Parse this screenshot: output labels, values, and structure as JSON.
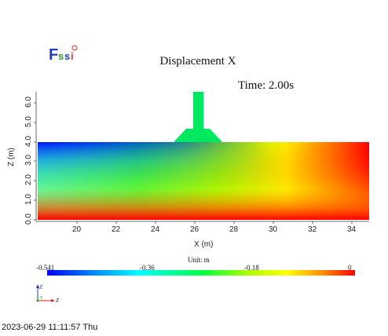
{
  "logo": {
    "text": "Fssi"
  },
  "plot": {
    "title": "Displacement X",
    "time_label": "Time: 2.00s",
    "xlabel": "X (m)",
    "ylabel": "Z (m)",
    "x_ticks": [
      "20",
      "22",
      "24",
      "26",
      "28",
      "30",
      "32",
      "34"
    ],
    "y_ticks": [
      "0.0",
      "1.0",
      "2.0",
      "3.0",
      "4.0",
      "5.0",
      "6.0"
    ]
  },
  "colorbar": {
    "unit_label": "Unit:  m",
    "labels": [
      "-0.541",
      "-0.36",
      "-0.18",
      "0"
    ],
    "colors": [
      "#0000ff",
      "#00ffff",
      "#00ff44",
      "#ffff00",
      "#ff0000"
    ]
  },
  "orientation": {
    "axis_z": "Z",
    "axis_y": "Y",
    "axis_x": "Z"
  },
  "status": {
    "timestamp": "2023-06-29 11:11:57 Thu"
  }
}
